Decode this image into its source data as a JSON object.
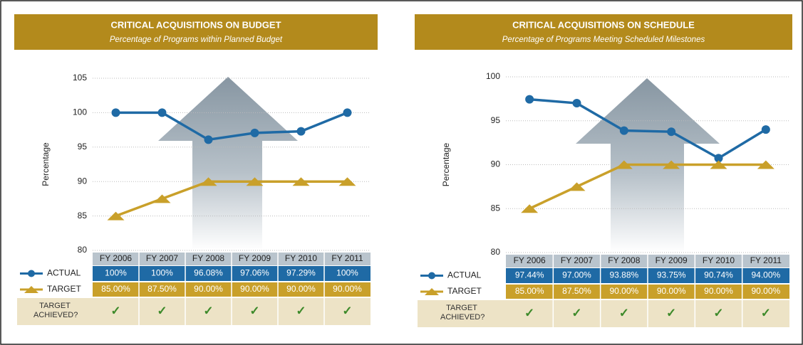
{
  "chart_data": [
    {
      "type": "line",
      "title": "CRITICAL ACQUISITIONS ON BUDGET",
      "subtitle": "Percentage of Programs within Planned Budget",
      "y_label": "Percentage",
      "categories": [
        "FY 2006",
        "FY 2007",
        "FY 2008",
        "FY 2009",
        "FY 2010",
        "FY 2011"
      ],
      "series": [
        {
          "name": "ACTUAL",
          "color": "#1f6aa5",
          "values": [
            100,
            100,
            96.08,
            97.06,
            97.29,
            100
          ],
          "value_labels": [
            "100%",
            "100%",
            "96.08%",
            "97.06%",
            "97.29%",
            "100%"
          ]
        },
        {
          "name": "TARGET",
          "color": "#c9a02a",
          "values": [
            85,
            87.5,
            90,
            90,
            90,
            90
          ],
          "value_labels": [
            "85.00%",
            "87.50%",
            "90.00%",
            "90.00%",
            "90.00%",
            "90.00%"
          ]
        }
      ],
      "achieved_label": "TARGET ACHIEVED?",
      "achieved": [
        "✓",
        "✓",
        "✓",
        "✓",
        "✓",
        "✓"
      ],
      "ylim": [
        80,
        105
      ],
      "yticks": [
        80,
        85,
        90,
        95,
        100,
        105
      ],
      "grid": true
    },
    {
      "type": "line",
      "title": "CRITICAL ACQUISITIONS ON SCHEDULE",
      "subtitle": "Percentage of Programs Meeting Scheduled Milestones",
      "y_label": "Percentage",
      "categories": [
        "FY 2006",
        "FY 2007",
        "FY 2008",
        "FY 2009",
        "FY 2010",
        "FY 2011"
      ],
      "series": [
        {
          "name": "ACTUAL",
          "color": "#1f6aa5",
          "values": [
            97.44,
            97.0,
            93.88,
            93.75,
            90.74,
            94.0
          ],
          "value_labels": [
            "97.44%",
            "97.00%",
            "93.88%",
            "93.75%",
            "90.74%",
            "94.00%"
          ]
        },
        {
          "name": "TARGET",
          "color": "#c9a02a",
          "values": [
            85,
            87.5,
            90,
            90,
            90,
            90
          ],
          "value_labels": [
            "85.00%",
            "87.50%",
            "90.00%",
            "90.00%",
            "90.00%",
            "90.00%"
          ]
        }
      ],
      "achieved_label": "TARGET ACHIEVED?",
      "achieved": [
        "✓",
        "✓",
        "✓",
        "✓",
        "✓",
        "✓"
      ],
      "ylim": [
        80,
        100
      ],
      "yticks": [
        80,
        85,
        90,
        95,
        100
      ],
      "grid": true
    }
  ]
}
